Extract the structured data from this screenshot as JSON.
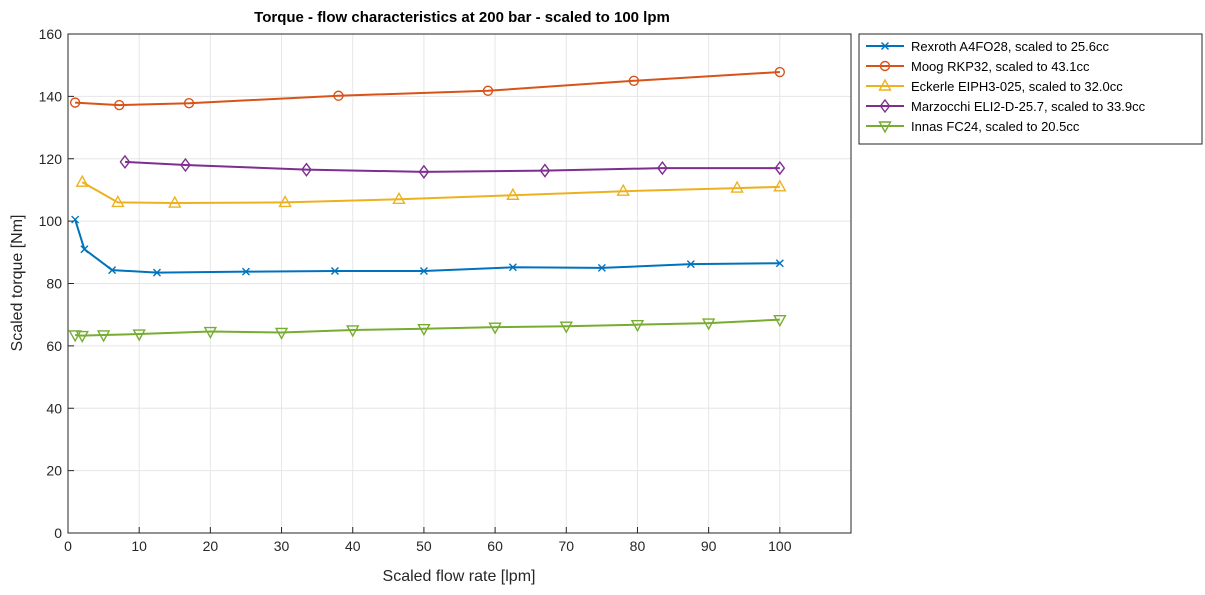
{
  "chart_data": {
    "type": "line",
    "title": "Torque - flow characteristics at 200 bar - scaled to 100 lpm",
    "xlabel": "Scaled flow rate [lpm]",
    "ylabel": "Scaled torque [Nm]",
    "xlim": [
      0,
      110
    ],
    "ylim": [
      0,
      160
    ],
    "xticks": [
      0,
      10,
      20,
      30,
      40,
      50,
      60,
      70,
      80,
      90,
      100
    ],
    "yticks": [
      0,
      20,
      40,
      60,
      80,
      100,
      120,
      140,
      160
    ],
    "grid": true,
    "legend_position": "outside-top-right",
    "series": [
      {
        "name": "Rexroth A4FO28, scaled to 25.6cc",
        "color": "#0072BD",
        "marker": "x",
        "x": [
          1,
          2.3,
          6.2,
          12.5,
          25,
          37.5,
          50,
          62.5,
          75,
          87.5,
          100
        ],
        "y": [
          100.5,
          91,
          84.3,
          83.5,
          83.8,
          84,
          84,
          85.2,
          85,
          86.2,
          86.5
        ]
      },
      {
        "name": "Moog RKP32, scaled to 43.1cc",
        "color": "#D95319",
        "marker": "circle",
        "x": [
          1,
          7.2,
          17,
          38,
          59,
          79.5,
          100
        ],
        "y": [
          138,
          137.2,
          137.8,
          140.2,
          141.8,
          145,
          147.8
        ]
      },
      {
        "name": "Eckerle EIPH3-025, scaled to 32.0cc",
        "color": "#EDB120",
        "marker": "triangle-up",
        "x": [
          2,
          7,
          15,
          30.5,
          46.5,
          62.5,
          78,
          94,
          100
        ],
        "y": [
          112.5,
          106,
          105.8,
          106,
          107,
          108.3,
          109.6,
          110.6,
          111
        ]
      },
      {
        "name": "Marzocchi ELI2-D-25.7, scaled to 33.9cc",
        "color": "#7E2F8E",
        "marker": "diamond",
        "x": [
          8,
          16.5,
          33.5,
          50,
          67,
          83.5,
          100
        ],
        "y": [
          119,
          118,
          116.5,
          115.8,
          116.2,
          117,
          117
        ]
      },
      {
        "name": "Innas FC24, scaled to 20.5cc",
        "color": "#77AC30",
        "marker": "triangle-down",
        "x": [
          1,
          2,
          5,
          10,
          20,
          30,
          40,
          50,
          60,
          70,
          80,
          90,
          100
        ],
        "y": [
          63.5,
          63.3,
          63.5,
          63.8,
          64.6,
          64.3,
          65.1,
          65.5,
          66,
          66.3,
          66.8,
          67.3,
          68.4
        ]
      }
    ]
  }
}
